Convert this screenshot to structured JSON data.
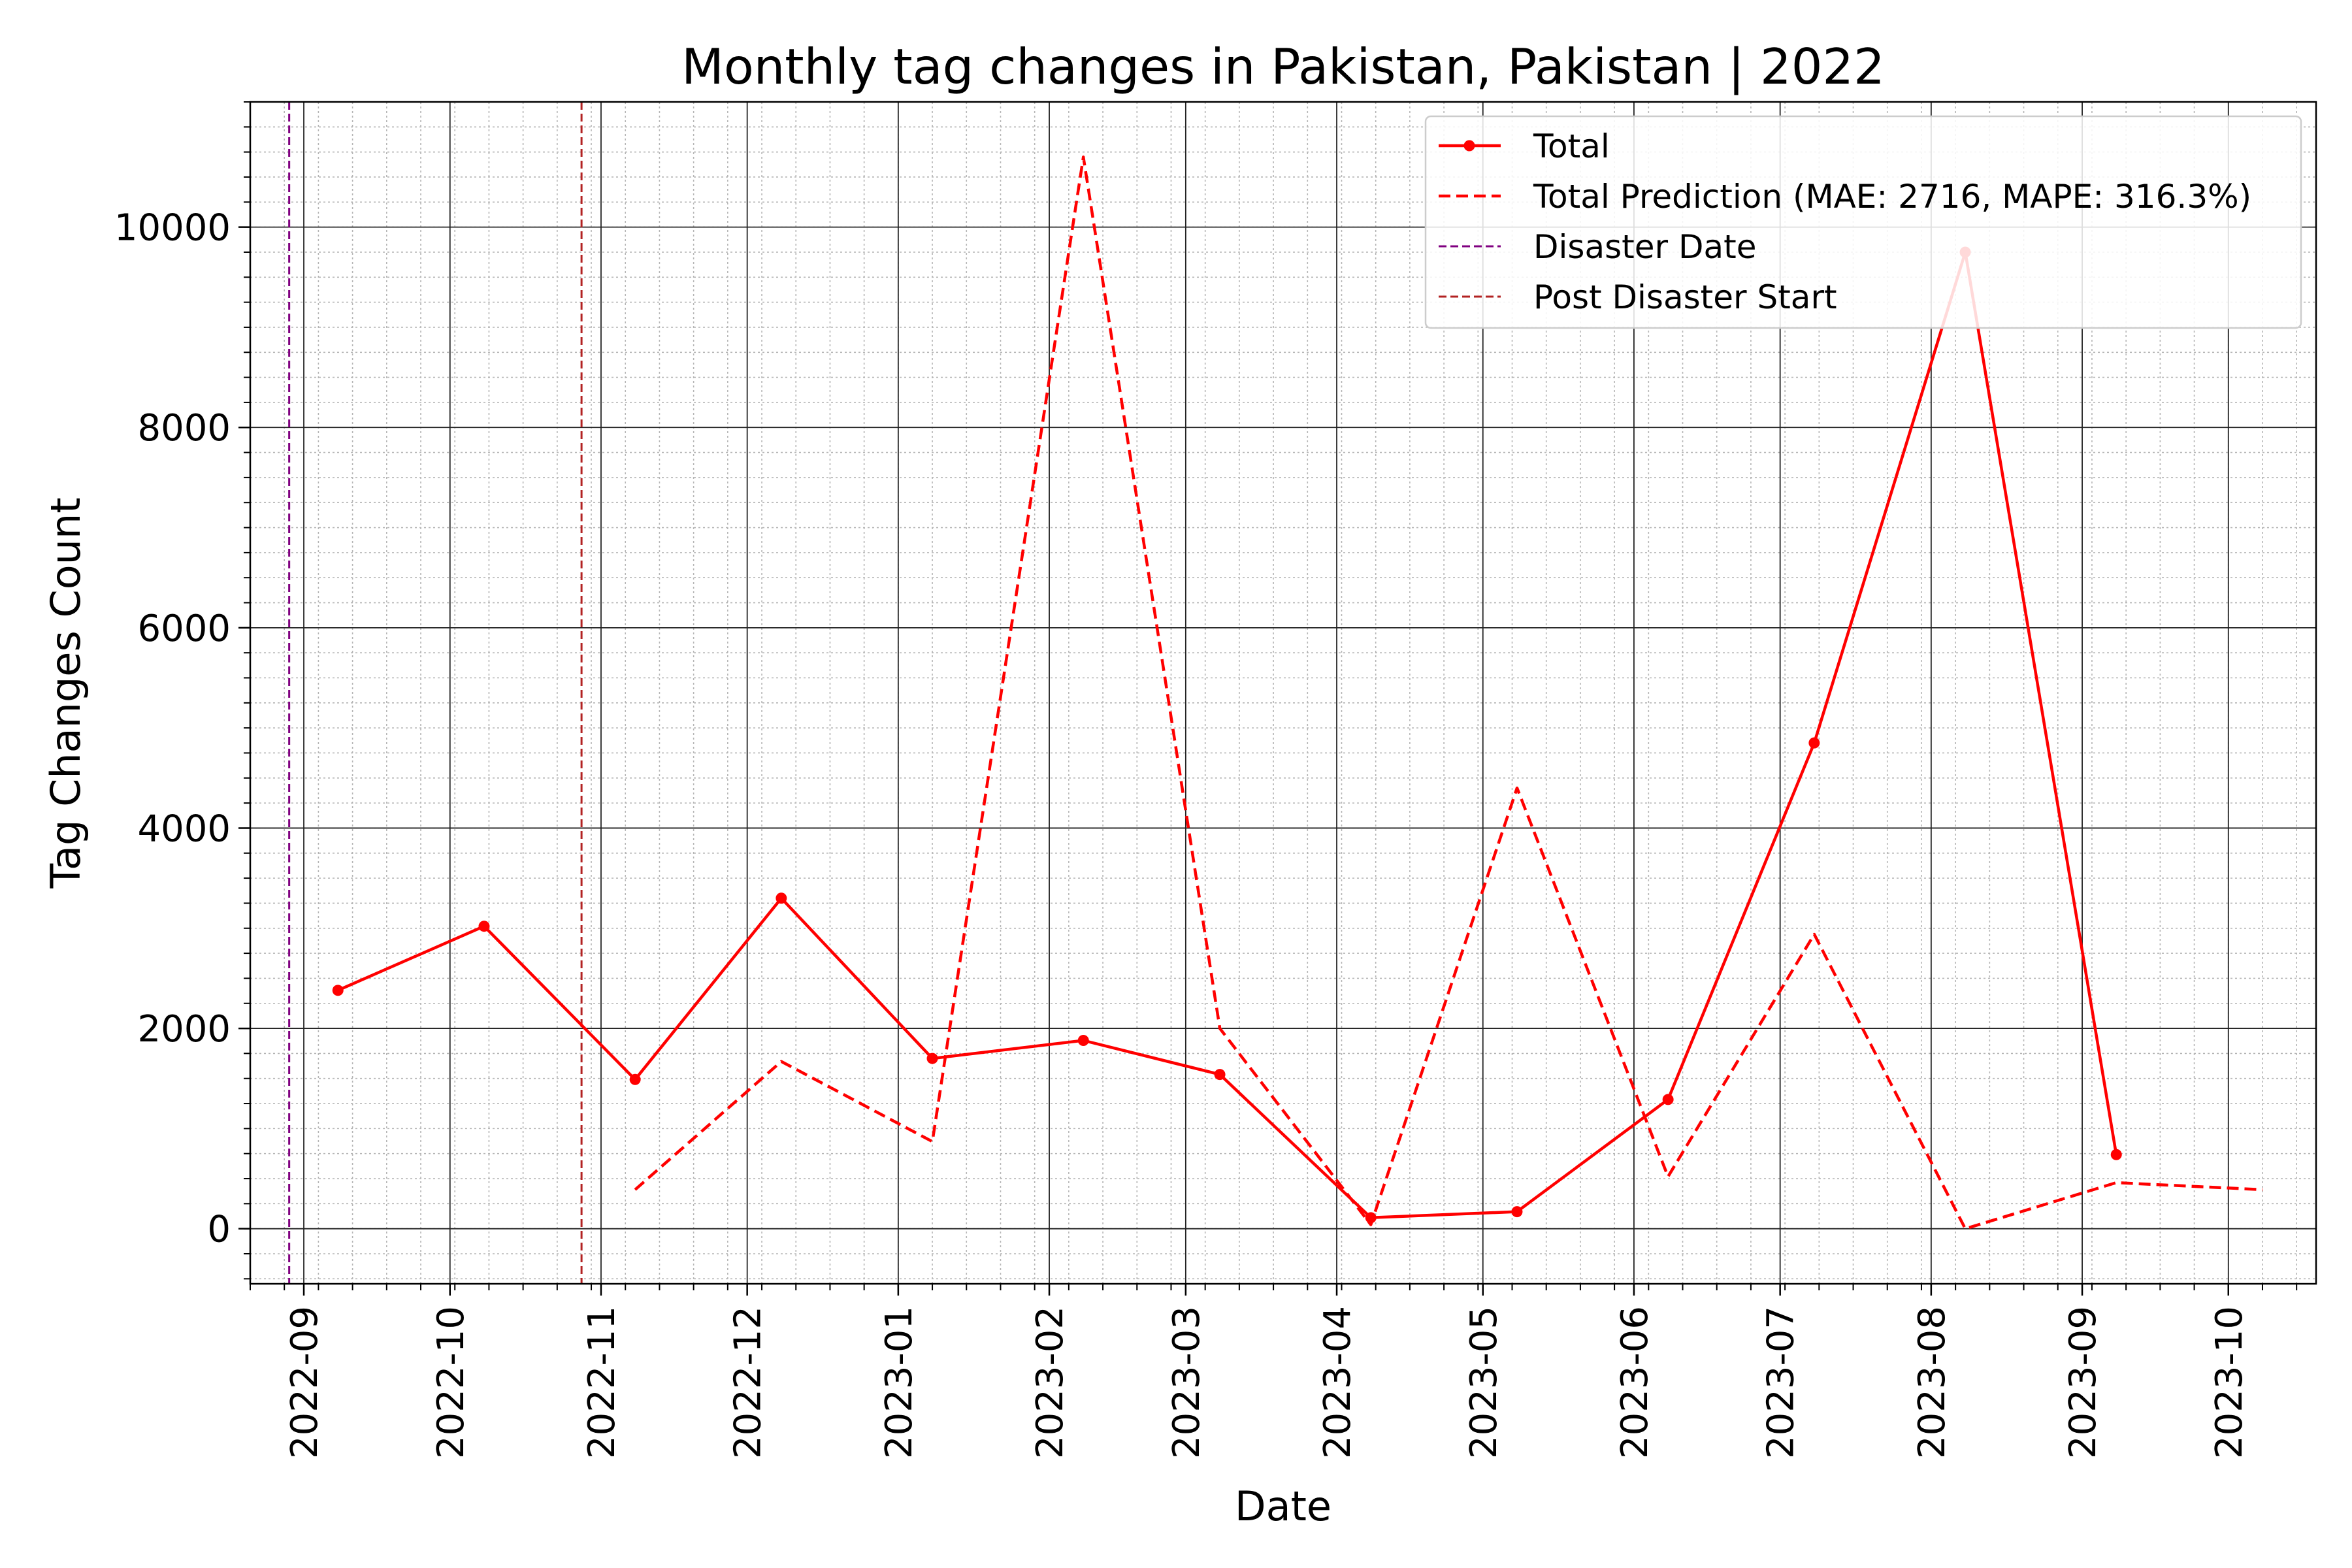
{
  "chart_data": {
    "type": "line",
    "title": "Monthly tag changes in Pakistan, Pakistan | 2022",
    "xlabel": "Date",
    "ylabel": "Tag Changes Count",
    "x_axis": {
      "type": "date",
      "range": [
        "2022-08-21",
        "2023-10-19"
      ],
      "tick_labels": [
        "2022-09",
        "2022-10",
        "2022-11",
        "2022-12",
        "2023-01",
        "2023-02",
        "2023-03",
        "2023-04",
        "2023-05",
        "2023-06",
        "2023-07",
        "2023-08",
        "2023-09",
        "2023-10"
      ]
    },
    "y_axis": {
      "range": [
        -550,
        11250
      ],
      "tick_labels": [
        "0",
        "2000",
        "4000",
        "6000",
        "8000",
        "10000"
      ],
      "tick_values": [
        0,
        2000,
        4000,
        6000,
        8000,
        10000
      ]
    },
    "grid": {
      "major": true,
      "minor": true
    },
    "legend": {
      "placement": "top-right",
      "entries": [
        "Total",
        "Total Prediction (MAE: 2716, MAPE: 316.3%)",
        "Disaster Date",
        "Post Disaster Start"
      ]
    },
    "series": [
      {
        "name": "Total",
        "color": "#ff0000",
        "style": "solid-with-markers",
        "points": [
          [
            "2022-09-08",
            2380
          ],
          [
            "2022-10-08",
            3020
          ],
          [
            "2022-11-08",
            1490
          ],
          [
            "2022-12-08",
            3300
          ],
          [
            "2023-01-08",
            1700
          ],
          [
            "2023-02-08",
            1880
          ],
          [
            "2023-03-08",
            1540
          ],
          [
            "2023-04-08",
            110
          ],
          [
            "2023-05-08",
            170
          ],
          [
            "2023-06-08",
            1290
          ],
          [
            "2023-07-08",
            4850
          ],
          [
            "2023-08-08",
            9750
          ],
          [
            "2023-09-08",
            740
          ]
        ]
      },
      {
        "name": "Total Prediction (MAE: 2716, MAPE: 316.3%)",
        "color": "#ff0000",
        "style": "dashed",
        "points": [
          [
            "2022-11-08",
            390
          ],
          [
            "2022-12-08",
            1670
          ],
          [
            "2023-01-08",
            870
          ],
          [
            "2023-02-08",
            10700
          ],
          [
            "2023-03-08",
            2000
          ],
          [
            "2023-04-08",
            40
          ],
          [
            "2023-05-08",
            4400
          ],
          [
            "2023-06-08",
            520
          ],
          [
            "2023-07-08",
            2940
          ],
          [
            "2023-08-08",
            0
          ],
          [
            "2023-09-08",
            460
          ],
          [
            "2023-10-08",
            390
          ]
        ]
      }
    ],
    "vlines": [
      {
        "name": "Disaster Date",
        "x": "2022-08-29",
        "color": "#800080",
        "style": "dashed"
      },
      {
        "name": "Post Disaster Start",
        "x": "2022-10-28",
        "color": "#b22222",
        "style": "dashed"
      }
    ]
  }
}
